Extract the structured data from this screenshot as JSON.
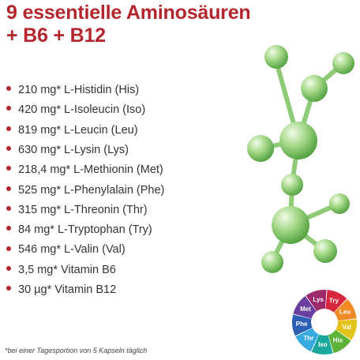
{
  "title": [
    "9 essentielle Aminosäuren",
    "+ B6 + B12"
  ],
  "items": [
    "210 mg* L-Histidin (His)",
    "420 mg* L-Isoleucin (Iso)",
    "819 mg* L-Leucin (Leu)",
    "630 mg* L-Lysin (Lys)",
    "218,4 mg* L-Methionin (Met)",
    "525 mg* L-Phenylalain (Phe)",
    "315 mg* L-Threonin  (Thr)",
    "84 mg* L-Tryptophan (Try)",
    "546 mg* L-Valin (Val)",
    "3,5 mg* Vitamin B6",
    "30 µg* Vitamin B12"
  ],
  "wheel": [
    {
      "label": "Lys",
      "color": "#9c2a6b"
    },
    {
      "label": "Try",
      "color": "#d7263d"
    },
    {
      "label": "Leu",
      "color": "#f08a24"
    },
    {
      "label": "Val",
      "color": "#e3c21b"
    },
    {
      "label": "His",
      "color": "#5cb338"
    },
    {
      "label": "Iso",
      "color": "#1ba89c"
    },
    {
      "label": "Thr",
      "color": "#36a9e1"
    },
    {
      "label": "Phe",
      "color": "#2d5fb5"
    },
    {
      "label": "Met",
      "color": "#6b3fa0"
    }
  ],
  "footnote": "*bei einer Tagesportion von 5 Kapseln täglich"
}
